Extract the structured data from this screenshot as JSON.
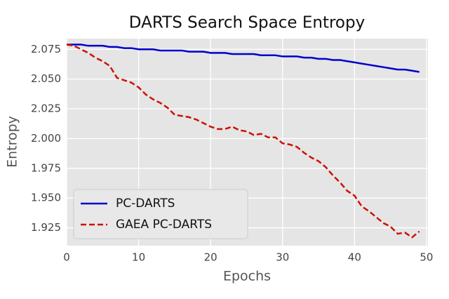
{
  "chart_data": {
    "type": "line",
    "title": "DARTS Search Space Entropy",
    "xlabel": "Epochs",
    "ylabel": "Entropy",
    "x": [
      0,
      1,
      2,
      3,
      4,
      5,
      6,
      7,
      8,
      9,
      10,
      11,
      12,
      13,
      14,
      15,
      16,
      17,
      18,
      19,
      20,
      21,
      22,
      23,
      24,
      25,
      26,
      27,
      28,
      29,
      30,
      31,
      32,
      33,
      34,
      35,
      36,
      37,
      38,
      39,
      40,
      41,
      42,
      43,
      44,
      45,
      46,
      47,
      48,
      49
    ],
    "series": [
      {
        "name": "PC-DARTS",
        "color": "#0000cc",
        "linestyle": "solid",
        "values": [
          2.079,
          2.079,
          2.079,
          2.078,
          2.078,
          2.078,
          2.077,
          2.077,
          2.076,
          2.076,
          2.075,
          2.075,
          2.075,
          2.074,
          2.074,
          2.074,
          2.074,
          2.073,
          2.073,
          2.073,
          2.072,
          2.072,
          2.072,
          2.071,
          2.071,
          2.071,
          2.071,
          2.07,
          2.07,
          2.07,
          2.069,
          2.069,
          2.069,
          2.068,
          2.068,
          2.067,
          2.067,
          2.066,
          2.066,
          2.065,
          2.064,
          2.063,
          2.062,
          2.061,
          2.06,
          2.059,
          2.058,
          2.058,
          2.057,
          2.056
        ]
      },
      {
        "name": "GAEA PC-DARTS",
        "color": "#cc1100",
        "linestyle": "dashed",
        "values": [
          2.079,
          2.078,
          2.075,
          2.072,
          2.068,
          2.065,
          2.061,
          2.051,
          2.049,
          2.047,
          2.043,
          2.037,
          2.033,
          2.03,
          2.026,
          2.02,
          2.019,
          2.018,
          2.016,
          2.013,
          2.01,
          2.008,
          2.008,
          2.01,
          2.007,
          2.006,
          2.003,
          2.004,
          2.001,
          2.001,
          1.996,
          1.995,
          1.993,
          1.988,
          1.984,
          1.981,
          1.976,
          1.969,
          1.963,
          1.956,
          1.952,
          1.943,
          1.939,
          1.934,
          1.929,
          1.926,
          1.92,
          1.921,
          1.917,
          1.922
        ]
      }
    ],
    "xlim": [
      0,
      50.2
    ],
    "xticks": [
      0,
      10,
      20,
      30,
      40,
      50
    ],
    "ylim": [
      1.91,
      2.084
    ],
    "yticks": [
      1.925,
      {
        "value": 1.95,
        "label": "1.950"
      },
      1.975,
      {
        "value": 2,
        "label": "2.000"
      },
      2.025,
      {
        "value": 2.05,
        "label": "2.050"
      },
      2.075
    ],
    "grid": true,
    "legend": "lower left"
  }
}
